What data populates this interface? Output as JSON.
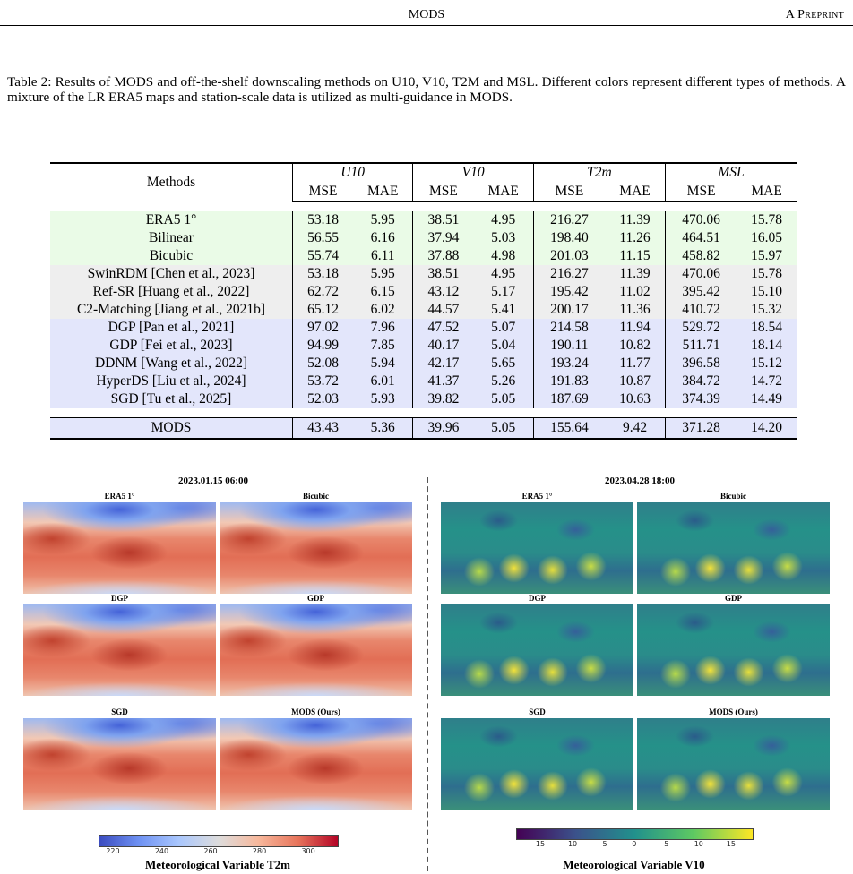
{
  "header": {
    "title": "MODS",
    "right": "A Preprint"
  },
  "caption": {
    "label": "Table 2:",
    "text": "Results of MODS and off-the-shelf downscaling methods on U10, V10, T2M and MSL. Different colors represent different types of methods. A mixture of the LR ERA5 maps and station-scale data is utilized as multi-guidance in MODS."
  },
  "table": {
    "methods_header": "Methods",
    "groups": [
      "U10",
      "V10",
      "T2m",
      "MSL"
    ],
    "sub": [
      "MSE",
      "MAE",
      "MSE",
      "MAE",
      "MSE",
      "MAE",
      "MSE",
      "MAE"
    ],
    "rows": [
      {
        "method": "ERA5 1°",
        "cells": [
          "53.18",
          "5.95",
          "38.51",
          "4.95",
          "216.27",
          "11.39",
          "470.06",
          "15.78"
        ]
      },
      {
        "method": "Bilinear",
        "cells": [
          "56.55",
          "6.16",
          "37.94",
          "5.03",
          "198.40",
          "11.26",
          "464.51",
          "16.05"
        ]
      },
      {
        "method": "Bicubic",
        "cells": [
          "55.74",
          "6.11",
          "37.88",
          "4.98",
          "201.03",
          "11.15",
          "458.82",
          "15.97"
        ]
      },
      {
        "method": "SwinRDM  [Chen et al., 2023]",
        "cells": [
          "53.18",
          "5.95",
          "38.51",
          "4.95",
          "216.27",
          "11.39",
          "470.06",
          "15.78"
        ]
      },
      {
        "method": "Ref-SR  [Huang et al., 2022]",
        "cells": [
          "62.72",
          "6.15",
          "43.12",
          "5.17",
          "195.42",
          "11.02",
          "395.42",
          "15.10"
        ]
      },
      {
        "method": "C2-Matching  [Jiang et al., 2021b]",
        "cells": [
          "65.12",
          "6.02",
          "44.57",
          "5.41",
          "200.17",
          "11.36",
          "410.72",
          "15.32"
        ]
      },
      {
        "method": "DGP  [Pan et al., 2021]",
        "cells": [
          "97.02",
          "7.96",
          "47.52",
          "5.07",
          "214.58",
          "11.94",
          "529.72",
          "18.54"
        ]
      },
      {
        "method": "GDP  [Fei et al., 2023]",
        "cells": [
          "94.99",
          "7.85",
          "40.17",
          "5.04",
          "190.11",
          "10.82",
          "511.71",
          "18.14"
        ]
      },
      {
        "method": "DDNM  [Wang et al., 2022]",
        "cells": [
          "52.08",
          "5.94",
          "42.17",
          "5.65",
          "193.24",
          "11.77",
          "396.58",
          "15.12"
        ]
      },
      {
        "method": "HyperDS  [Liu et al., 2024]",
        "cells": [
          "53.72",
          "6.01",
          "41.37",
          "5.26",
          "191.83",
          "10.87",
          "384.72",
          "14.72"
        ]
      },
      {
        "method": "SGD  [Tu et al., 2025]",
        "cells": [
          "52.03",
          "5.93",
          "39.82",
          "5.05",
          "187.69",
          "10.63",
          "374.39",
          "14.49"
        ]
      }
    ],
    "mods": {
      "method": "MODS",
      "cells": [
        "43.43",
        "5.36",
        "39.96",
        "5.05",
        "155.64",
        "9.42",
        "371.28",
        "14.20"
      ]
    }
  },
  "figure": {
    "left": {
      "date": "2023.01.15 06:00",
      "maps": [
        "ERA5 1°",
        "Bicubic",
        "DGP",
        "GDP",
        "SGD",
        "MODS (Ours)"
      ],
      "colorbar_ticks": [
        "220",
        "240",
        "260",
        "280",
        "300"
      ],
      "colorbar_label": "Meteorological Variable T2m"
    },
    "right": {
      "date": "2023.04.28 18:00",
      "maps": [
        "ERA5 1°",
        "Bicubic",
        "DGP",
        "GDP",
        "SGD",
        "MODS (Ours)"
      ],
      "colorbar_ticks": [
        "−15",
        "−10",
        "−5",
        "0",
        "5",
        "10",
        "15"
      ],
      "colorbar_label": "Meteorological Variable V10"
    },
    "colors": {
      "warm_deep": "#c0392b",
      "warm_mid": "#e8836a",
      "cool": "#4a6fd6",
      "viridis_dark": "#2c3e7a",
      "viridis_mid": "#1f8a8a",
      "viridis_light": "#f5e23c"
    }
  }
}
